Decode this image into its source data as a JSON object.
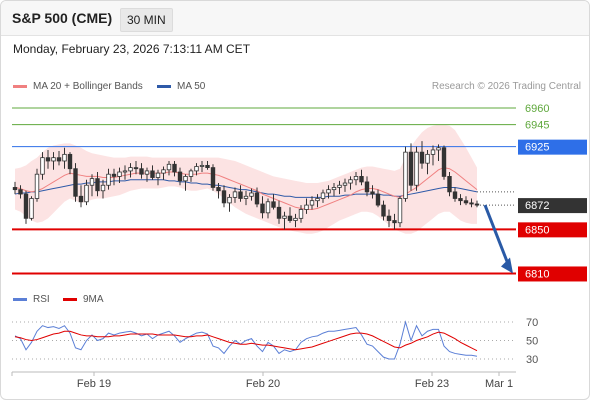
{
  "header": {
    "instrument": "S&P 500 (CME)",
    "timeframe": "30 MIN",
    "datetime": "Monday, February 23, 2026 7:13:11 AM CET"
  },
  "legend_main": [
    {
      "label": "MA 20 + Bollinger Bands",
      "color": "#f08080"
    },
    {
      "label": "MA 50",
      "color": "#2e5aa8"
    }
  ],
  "research_credit": "Research © 2026 Trading Central",
  "legend_rsi": [
    {
      "label": "RSI",
      "color": "#5b7fd6"
    },
    {
      "label": "9MA",
      "color": "#e00000"
    }
  ],
  "colors": {
    "resistance": "#5fa83c",
    "pivot": "#2e6fe8",
    "support": "#e00000",
    "current": "#333333",
    "arrow": "#2a5aa6"
  },
  "chart_data": {
    "type": "candlestick",
    "ylim": [
      6800,
      6975
    ],
    "price_levels": [
      {
        "value": 6960,
        "label": "6960",
        "kind": "resistance"
      },
      {
        "value": 6945,
        "label": "6945",
        "kind": "resistance"
      },
      {
        "value": 6925,
        "label": "6925",
        "kind": "pivot"
      },
      {
        "value": 6872,
        "label": "6872",
        "kind": "current"
      },
      {
        "value": 6850,
        "label": "6850",
        "kind": "support"
      },
      {
        "value": 6810,
        "label": "6810",
        "kind": "support"
      }
    ],
    "x_ticks": [
      "Feb 19",
      "Feb 20",
      "Feb 23",
      "Mar 1"
    ],
    "forecast_arrow": {
      "from": 6872,
      "to": 6810
    },
    "rsi_ticks": [
      70,
      50,
      30
    ],
    "candles": [
      [
        6888,
        6893,
        6882,
        6886
      ],
      [
        6886,
        6890,
        6878,
        6882
      ],
      [
        6882,
        6885,
        6855,
        6860
      ],
      [
        6860,
        6880,
        6858,
        6878
      ],
      [
        6878,
        6905,
        6875,
        6900
      ],
      [
        6900,
        6920,
        6895,
        6915
      ],
      [
        6915,
        6922,
        6905,
        6912
      ],
      [
        6912,
        6920,
        6904,
        6915
      ],
      [
        6915,
        6921,
        6908,
        6912
      ],
      [
        6912,
        6924,
        6905,
        6918
      ],
      [
        6918,
        6920,
        6900,
        6905
      ],
      [
        6905,
        6910,
        6875,
        6880
      ],
      [
        6880,
        6890,
        6870,
        6875
      ],
      [
        6875,
        6895,
        6872,
        6890
      ],
      [
        6890,
        6900,
        6880,
        6896
      ],
      [
        6896,
        6902,
        6880,
        6885
      ],
      [
        6885,
        6895,
        6878,
        6890
      ],
      [
        6890,
        6905,
        6886,
        6900
      ],
      [
        6900,
        6905,
        6890,
        6898
      ],
      [
        6898,
        6906,
        6892,
        6902
      ],
      [
        6902,
        6908,
        6895,
        6903
      ],
      [
        6903,
        6910,
        6897,
        6906
      ],
      [
        6906,
        6912,
        6900,
        6905
      ],
      [
        6905,
        6910,
        6896,
        6900
      ],
      [
        6900,
        6906,
        6893,
        6903
      ],
      [
        6903,
        6908,
        6895,
        6897
      ],
      [
        6897,
        6904,
        6890,
        6901
      ],
      [
        6901,
        6907,
        6895,
        6904
      ],
      [
        6904,
        6912,
        6899,
        6909
      ],
      [
        6909,
        6912,
        6898,
        6902
      ],
      [
        6902,
        6906,
        6890,
        6894
      ],
      [
        6894,
        6900,
        6885,
        6898
      ],
      [
        6898,
        6905,
        6893,
        6903
      ],
      [
        6903,
        6910,
        6899,
        6907
      ],
      [
        6907,
        6912,
        6902,
        6908
      ],
      [
        6908,
        6912,
        6904,
        6906
      ],
      [
        6906,
        6909,
        6885,
        6888
      ],
      [
        6888,
        6892,
        6878,
        6885
      ],
      [
        6885,
        6890,
        6870,
        6874
      ],
      [
        6874,
        6882,
        6866,
        6879
      ],
      [
        6879,
        6888,
        6874,
        6884
      ],
      [
        6884,
        6890,
        6875,
        6878
      ],
      [
        6878,
        6885,
        6872,
        6880
      ],
      [
        6880,
        6887,
        6876,
        6883
      ],
      [
        6883,
        6888,
        6870,
        6873
      ],
      [
        6873,
        6880,
        6860,
        6865
      ],
      [
        6865,
        6878,
        6860,
        6875
      ],
      [
        6875,
        6882,
        6868,
        6870
      ],
      [
        6870,
        6876,
        6855,
        6860
      ],
      [
        6860,
        6866,
        6850,
        6862
      ],
      [
        6862,
        6870,
        6856,
        6858
      ],
      [
        6858,
        6864,
        6852,
        6860
      ],
      [
        6860,
        6872,
        6856,
        6868
      ],
      [
        6868,
        6878,
        6864,
        6872
      ],
      [
        6872,
        6880,
        6868,
        6876
      ],
      [
        6876,
        6882,
        6870,
        6878
      ],
      [
        6878,
        6886,
        6874,
        6883
      ],
      [
        6883,
        6890,
        6878,
        6886
      ],
      [
        6886,
        6892,
        6880,
        6888
      ],
      [
        6888,
        6894,
        6882,
        6890
      ],
      [
        6890,
        6896,
        6884,
        6892
      ],
      [
        6892,
        6898,
        6886,
        6895
      ],
      [
        6895,
        6902,
        6890,
        6898
      ],
      [
        6898,
        6904,
        6890,
        6893
      ],
      [
        6893,
        6898,
        6880,
        6884
      ],
      [
        6884,
        6890,
        6878,
        6882
      ],
      [
        6882,
        6886,
        6870,
        6872
      ],
      [
        6872,
        6876,
        6858,
        6862
      ],
      [
        6862,
        6868,
        6852,
        6858
      ],
      [
        6858,
        6864,
        6850,
        6856
      ],
      [
        6856,
        6880,
        6852,
        6878
      ],
      [
        6878,
        6925,
        6875,
        6920
      ],
      [
        6920,
        6928,
        6885,
        6890
      ],
      [
        6890,
        6925,
        6885,
        6920
      ],
      [
        6920,
        6930,
        6905,
        6910
      ],
      [
        6910,
        6922,
        6900,
        6918
      ],
      [
        6918,
        6926,
        6908,
        6922
      ],
      [
        6922,
        6927,
        6912,
        6924
      ],
      [
        6924,
        6926,
        6895,
        6898
      ],
      [
        6898,
        6902,
        6880,
        6884
      ],
      [
        6884,
        6888,
        6875,
        6878
      ],
      [
        6878,
        6882,
        6872,
        6876
      ],
      [
        6876,
        6880,
        6872,
        6874
      ],
      [
        6874,
        6878,
        6870,
        6873
      ],
      [
        6873,
        6876,
        6870,
        6872
      ]
    ],
    "ma20": [
      6888,
      6887,
      6885,
      6884,
      6885,
      6887,
      6890,
      6893,
      6896,
      6899,
      6901,
      6900,
      6899,
      6898,
      6898,
      6898,
      6897,
      6897,
      6897,
      6898,
      6899,
      6900,
      6901,
      6901,
      6901,
      6901,
      6901,
      6901,
      6902,
      6902,
      6901,
      6900,
      6900,
      6900,
      6901,
      6901,
      6900,
      6899,
      6897,
      6895,
      6893,
      6891,
      6889,
      6887,
      6885,
      6882,
      6880,
      6878,
      6876,
      6874,
      6872,
      6870,
      6869,
      6868,
      6868,
      6869,
      6871,
      6873,
      6875,
      6877,
      6879,
      6881,
      6884,
      6886,
      6887,
      6887,
      6886,
      6884,
      6882,
      6880,
      6879,
      6882,
      6885,
      6888,
      6892,
      6896,
      6900,
      6904,
      6906,
      6905,
      6902,
      6898,
      6894,
      6890,
      6886
    ],
    "bb_upper": [
      6905,
      6906,
      6908,
      6912,
      6915,
      6920,
      6924,
      6926,
      6927,
      6928,
      6928,
      6926,
      6924,
      6921,
      6919,
      6918,
      6917,
      6916,
      6915,
      6915,
      6915,
      6916,
      6916,
      6916,
      6916,
      6915,
      6915,
      6915,
      6915,
      6915,
      6915,
      6915,
      6915,
      6915,
      6915,
      6915,
      6915,
      6915,
      6914,
      6913,
      6912,
      6910,
      6908,
      6906,
      6904,
      6902,
      6900,
      6898,
      6897,
      6896,
      6895,
      6894,
      6893,
      6892,
      6892,
      6892,
      6893,
      6894,
      6896,
      6898,
      6900,
      6902,
      6904,
      6906,
      6907,
      6907,
      6906,
      6905,
      6904,
      6903,
      6905,
      6915,
      6925,
      6932,
      6938,
      6942,
      6944,
      6945,
      6945,
      6944,
      6940,
      6932,
      6924,
      6915,
      6906
    ],
    "bb_lower": [
      6868,
      6866,
      6862,
      6858,
      6856,
      6857,
      6860,
      6865,
      6870,
      6875,
      6878,
      6876,
      6874,
      6875,
      6877,
      6878,
      6878,
      6879,
      6880,
      6881,
      6883,
      6885,
      6886,
      6887,
      6887,
      6887,
      6887,
      6888,
      6889,
      6889,
      6888,
      6886,
      6885,
      6885,
      6886,
      6887,
      6885,
      6882,
      6878,
      6874,
      6870,
      6867,
      6864,
      6862,
      6860,
      6858,
      6856,
      6854,
      6852,
      6850,
      6849,
      6848,
      6847,
      6846,
      6846,
      6847,
      6849,
      6852,
      6855,
      6858,
      6860,
      6862,
      6864,
      6866,
      6866,
      6865,
      6862,
      6858,
      6854,
      6850,
      6848,
      6846,
      6846,
      6848,
      6852,
      6856,
      6860,
      6864,
      6866,
      6866,
      6862,
      6858,
      6856,
      6855,
      6855
    ],
    "ma50": [
      6882,
      6883,
      6883,
      6884,
      6884,
      6885,
      6886,
      6887,
      6888,
      6889,
      6890,
      6891,
      6891,
      6892,
      6892,
      6893,
      6893,
      6893,
      6894,
      6894,
      6894,
      6895,
      6895,
      6895,
      6895,
      6895,
      6895,
      6895,
      6894,
      6894,
      6893,
      6893,
      6892,
      6892,
      6891,
      6891,
      6890,
      6890,
      6889,
      6888,
      6887,
      6886,
      6886,
      6885,
      6884,
      6883,
      6882,
      6882,
      6881,
      6880,
      6880,
      6879,
      6879,
      6879,
      6879,
      6879,
      6879,
      6880,
      6880,
      6880,
      6881,
      6881,
      6882,
      6882,
      6882,
      6882,
      6882,
      6881,
      6881,
      6880,
      6880,
      6881,
      6882,
      6883,
      6884,
      6885,
      6886,
      6887,
      6888,
      6888,
      6888,
      6887,
      6886,
      6885,
      6884
    ],
    "rsi": [
      55,
      52,
      40,
      48,
      60,
      66,
      64,
      65,
      63,
      66,
      58,
      42,
      40,
      50,
      56,
      50,
      52,
      58,
      56,
      58,
      59,
      60,
      58,
      55,
      57,
      52,
      56,
      58,
      60,
      55,
      48,
      52,
      55,
      58,
      59,
      57,
      44,
      42,
      36,
      44,
      50,
      46,
      50,
      52,
      44,
      38,
      48,
      44,
      36,
      40,
      38,
      40,
      48,
      52,
      54,
      55,
      58,
      60,
      60,
      61,
      62,
      63,
      64,
      56,
      46,
      44,
      38,
      32,
      30,
      30,
      46,
      70,
      50,
      66,
      55,
      60,
      62,
      62,
      44,
      38,
      36,
      35,
      34,
      34,
      33
    ],
    "rsi_ma": [
      54,
      53,
      51,
      50,
      51,
      53,
      55,
      57,
      58,
      60,
      60,
      58,
      56,
      55,
      55,
      54,
      54,
      54,
      55,
      55,
      56,
      57,
      57,
      57,
      57,
      57,
      56,
      56,
      56,
      56,
      55,
      54,
      54,
      55,
      55,
      56,
      54,
      52,
      50,
      48,
      47,
      46,
      46,
      47,
      46,
      45,
      45,
      44,
      43,
      42,
      41,
      40,
      41,
      42,
      43,
      45,
      47,
      49,
      51,
      53,
      55,
      57,
      58,
      58,
      57,
      55,
      52,
      49,
      46,
      43,
      42,
      45,
      47,
      50,
      52,
      54,
      57,
      59,
      58,
      55,
      52,
      48,
      45,
      42,
      39
    ]
  }
}
